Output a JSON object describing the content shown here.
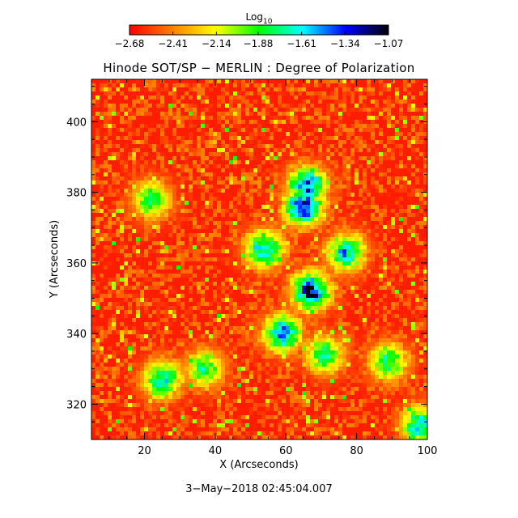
{
  "chart_data": {
    "type": "heatmap",
    "title": "Hinode SOT/SP − MERLIN : Degree of Polarization",
    "xlabel": "X (Arcseconds)",
    "ylabel": "Y (Arcseconds)",
    "xlim": [
      5,
      100
    ],
    "ylim": [
      310,
      412
    ],
    "x_ticks": [
      20,
      40,
      60,
      80,
      100
    ],
    "y_ticks": [
      320,
      340,
      360,
      380,
      400
    ],
    "x_tick_labels": [
      "20",
      "40",
      "60",
      "80",
      "100"
    ],
    "y_tick_labels": [
      "320",
      "340",
      "360",
      "380",
      "400"
    ],
    "timestamp": "3−May−2018 02:45:04.007",
    "colorbar": {
      "label_main": "Log",
      "label_sub": "10",
      "range": [
        -2.68,
        -1.07
      ],
      "ticks": [
        -2.68,
        -2.41,
        -2.14,
        -1.88,
        -1.61,
        -1.34,
        -1.07
      ],
      "tick_labels": [
        "−2.68",
        "−2.41",
        "−2.14",
        "−1.88",
        "−1.61",
        "−1.34",
        "−1.07"
      ],
      "colormap": [
        "#ff0000",
        "#ff8000",
        "#ffff00",
        "#00ff00",
        "#00ffff",
        "#0000ff",
        "#000000"
      ]
    },
    "background_value": -2.62,
    "features": [
      {
        "name": "central cluster",
        "x": 67,
        "y": 352,
        "peak_value": -1.15
      },
      {
        "name": "northern cluster",
        "x": 65,
        "y": 376,
        "peak_value": -1.2
      },
      {
        "name": "upper cluster",
        "x": 66,
        "y": 382,
        "peak_value": -1.3
      },
      {
        "name": "western patch",
        "x": 54,
        "y": 364,
        "peak_value": -1.45
      },
      {
        "name": "eastern patch",
        "x": 77,
        "y": 363,
        "peak_value": -1.5
      },
      {
        "name": "mid patch",
        "x": 59,
        "y": 340,
        "peak_value": -1.4
      },
      {
        "name": "southern patch",
        "x": 71,
        "y": 334,
        "peak_value": -1.7
      },
      {
        "name": "southwest patch",
        "x": 25,
        "y": 327,
        "peak_value": -1.55
      },
      {
        "name": "lower-left patch",
        "x": 37,
        "y": 330,
        "peak_value": -1.75
      },
      {
        "name": "bottom-right patch",
        "x": 98,
        "y": 314,
        "peak_value": -1.5
      },
      {
        "name": "right patch",
        "x": 89,
        "y": 332,
        "peak_value": -1.7
      },
      {
        "name": "left patch",
        "x": 22,
        "y": 378,
        "peak_value": -1.75
      }
    ]
  }
}
